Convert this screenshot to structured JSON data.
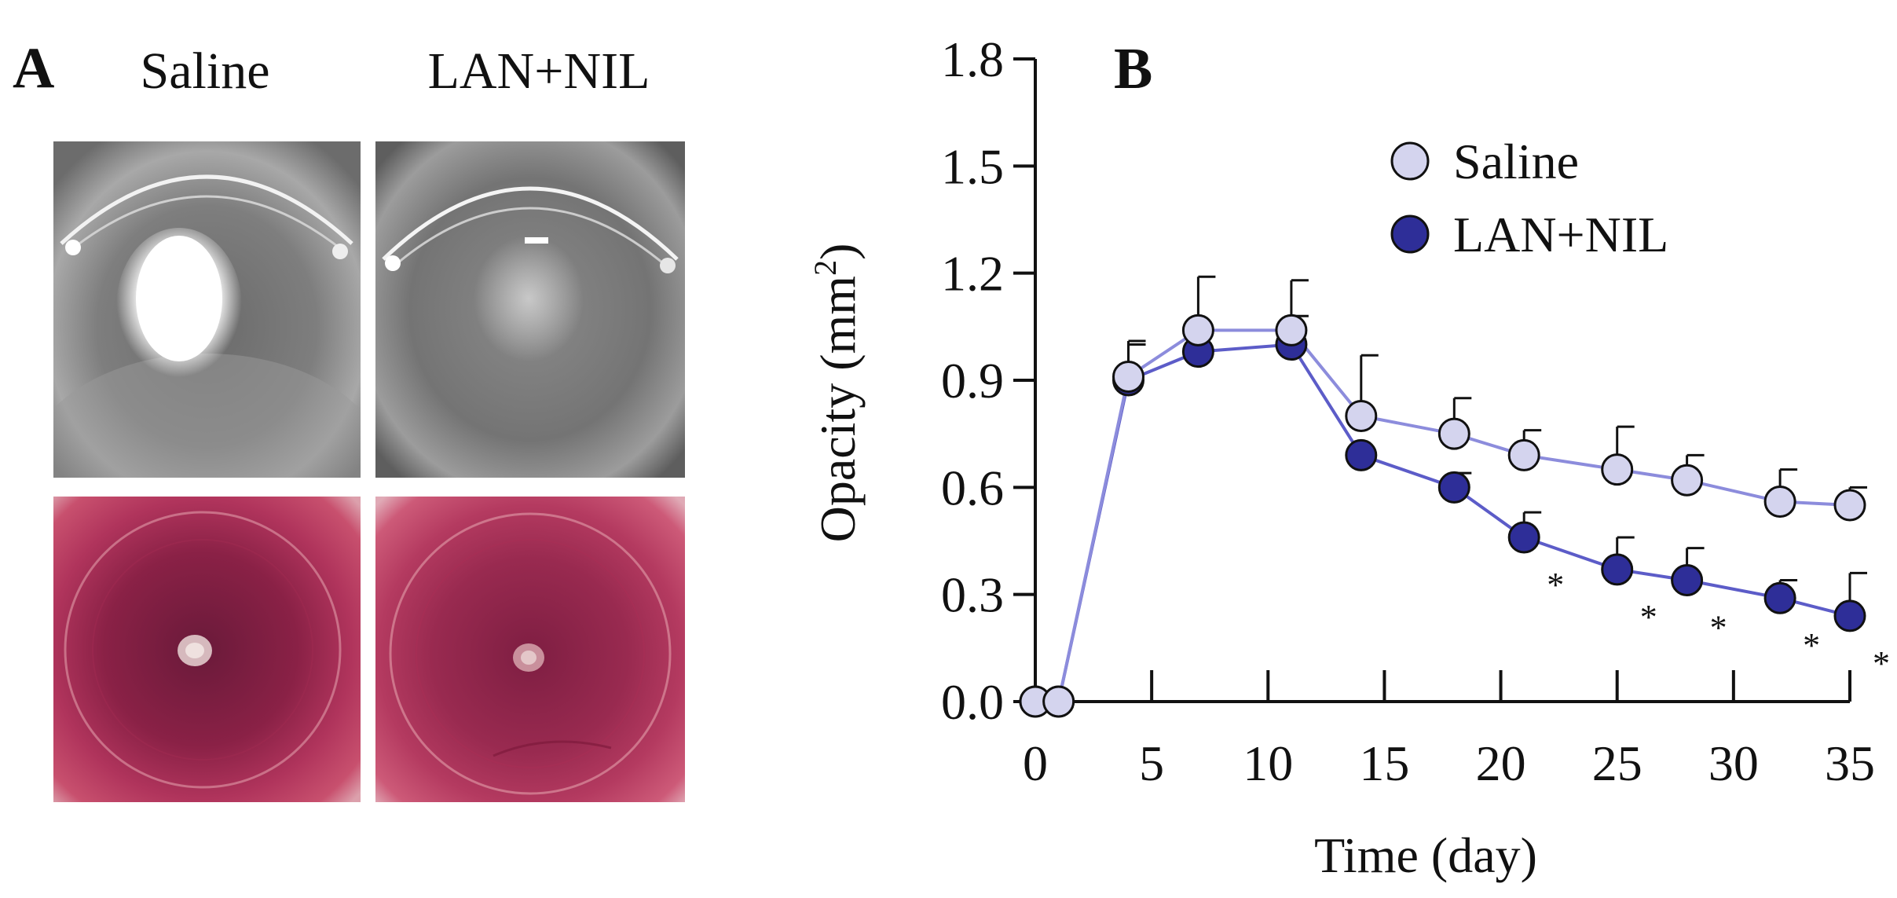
{
  "panels": {
    "a": {
      "label": "A",
      "columns": [
        "Saline",
        "LAN+NIL"
      ]
    },
    "b": {
      "label": "B"
    }
  },
  "colors": {
    "saline_fill": "#d4d4ee",
    "saline_line": "#8c8cdc",
    "lannil_fill": "#2e2e98",
    "lannil_line": "#5c5cc8",
    "axis": "#111111"
  },
  "chart_data": {
    "type": "line",
    "xlabel": "Time (day)",
    "ylabel": "Opacity (mm²)",
    "xlim": [
      0,
      35
    ],
    "ylim": [
      0,
      1.8
    ],
    "xticks": [
      0,
      5,
      10,
      15,
      20,
      25,
      30,
      35
    ],
    "yticks": [
      "0.0",
      "0.3",
      "0.6",
      "0.9",
      "1.2",
      "1.5",
      "1.8"
    ],
    "legend_position": "top-right",
    "series": [
      {
        "name": "Saline",
        "x": [
          0,
          1,
          4,
          7,
          11,
          14,
          18,
          21,
          25,
          28,
          32,
          35
        ],
        "y": [
          0.0,
          0.0,
          0.91,
          1.04,
          1.04,
          0.8,
          0.75,
          0.69,
          0.65,
          0.62,
          0.56,
          0.55
        ],
        "err": [
          0,
          0,
          0.1,
          0.15,
          0.14,
          0.17,
          0.1,
          0.07,
          0.12,
          0.07,
          0.09,
          0.05
        ]
      },
      {
        "name": "LAN+NIL",
        "x": [
          0,
          1,
          4,
          7,
          11,
          14,
          18,
          21,
          25,
          28,
          32,
          35
        ],
        "y": [
          0.0,
          0.0,
          0.9,
          0.98,
          1.0,
          0.69,
          0.6,
          0.46,
          0.37,
          0.34,
          0.29,
          0.24
        ],
        "err": [
          0,
          0,
          0.1,
          0.06,
          0.08,
          0.0,
          0.04,
          0.07,
          0.09,
          0.09,
          0.05,
          0.12
        ]
      }
    ],
    "significance": {
      "marker": "*",
      "x": [
        21,
        25,
        28,
        32,
        35
      ]
    }
  }
}
